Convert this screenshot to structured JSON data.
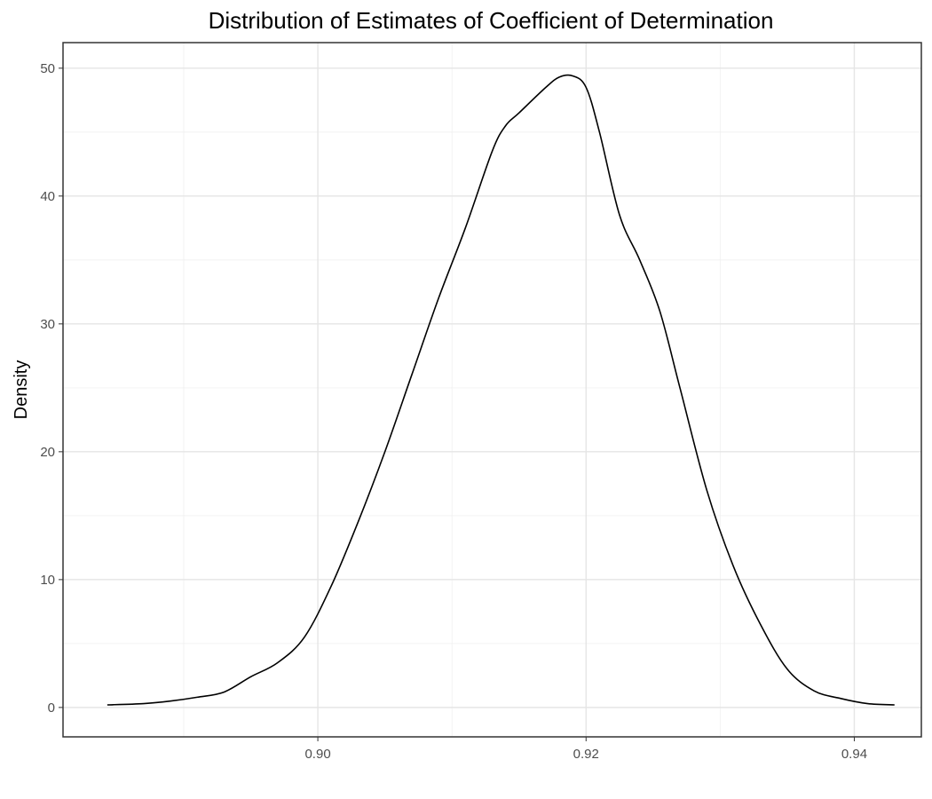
{
  "chart_data": {
    "type": "line",
    "title": "Distribution of Estimates of Coefficient of Determination",
    "xlabel": "",
    "ylabel": "Density",
    "xlim": [
      0.881,
      0.945
    ],
    "ylim": [
      -2.3,
      52.0
    ],
    "x_ticks": [
      0.9,
      0.92,
      0.94
    ],
    "x_tick_labels": [
      "0.90",
      "0.92",
      "0.94"
    ],
    "y_ticks": [
      0,
      10,
      20,
      30,
      40,
      50
    ],
    "y_tick_labels": [
      "0",
      "10",
      "20",
      "30",
      "40",
      "50"
    ],
    "grid": true,
    "legend": "none",
    "series": [
      {
        "color": "#000000",
        "x": [
          0.8843,
          0.887,
          0.889,
          0.891,
          0.893,
          0.895,
          0.897,
          0.899,
          0.901,
          0.903,
          0.905,
          0.907,
          0.909,
          0.911,
          0.913,
          0.914,
          0.915,
          0.917,
          0.918,
          0.919,
          0.92,
          0.921,
          0.9225,
          0.924,
          0.9255,
          0.927,
          0.929,
          0.931,
          0.933,
          0.935,
          0.937,
          0.939,
          0.941,
          0.943
        ],
        "y": [
          0.2,
          0.3,
          0.5,
          0.8,
          1.2,
          2.4,
          3.5,
          5.5,
          9.5,
          14.5,
          20.0,
          26.0,
          32.0,
          37.5,
          43.5,
          45.5,
          46.5,
          48.5,
          49.3,
          49.4,
          48.5,
          45.0,
          38.5,
          35.0,
          31.0,
          25.0,
          17.0,
          11.0,
          6.5,
          3.0,
          1.3,
          0.7,
          0.3,
          0.2
        ]
      }
    ]
  }
}
